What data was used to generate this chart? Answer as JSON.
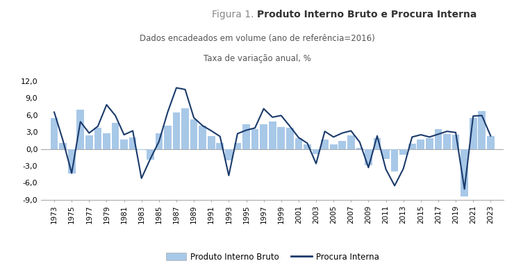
{
  "title_part1": "Figura 1. ",
  "title_part2": "Produto Interno Bruto e Procura Interna",
  "subtitle1": "Dados encadeados em volume (ano de referência=2016)",
  "subtitle2": "Taxa de variação anual, %",
  "years": [
    1973,
    1974,
    1975,
    1976,
    1977,
    1978,
    1979,
    1980,
    1981,
    1982,
    1983,
    1984,
    1985,
    1986,
    1987,
    1988,
    1989,
    1990,
    1991,
    1992,
    1993,
    1994,
    1995,
    1996,
    1997,
    1998,
    1999,
    2000,
    2001,
    2002,
    2003,
    2004,
    2005,
    2006,
    2007,
    2008,
    2009,
    2010,
    2011,
    2012,
    2013,
    2014,
    2015,
    2016,
    2017,
    2018,
    2019,
    2020,
    2021,
    2022,
    2023
  ],
  "pib": [
    5.5,
    1.1,
    -4.3,
    6.9,
    2.4,
    3.7,
    2.7,
    4.6,
    1.6,
    2.0,
    -0.2,
    -1.9,
    2.8,
    4.1,
    6.4,
    7.2,
    5.2,
    4.1,
    2.3,
    1.1,
    -2.0,
    1.0,
    4.3,
    3.5,
    4.4,
    4.8,
    3.9,
    3.8,
    1.9,
    0.8,
    -0.9,
    1.6,
    0.8,
    1.4,
    2.4,
    0.2,
    -2.9,
    1.9,
    -1.8,
    -4.0,
    -1.1,
    0.9,
    1.6,
    1.9,
    3.5,
    2.6,
    2.5,
    -8.4,
    5.5,
    6.7,
    2.3
  ],
  "procura": [
    6.5,
    1.5,
    -4.3,
    4.8,
    2.8,
    4.0,
    7.8,
    5.9,
    2.5,
    3.2,
    -5.2,
    -1.8,
    1.3,
    6.5,
    10.8,
    10.5,
    5.5,
    4.1,
    3.2,
    2.2,
    -4.7,
    2.7,
    3.3,
    3.7,
    7.1,
    5.6,
    5.9,
    4.0,
    2.0,
    1.0,
    -2.6,
    3.1,
    2.1,
    2.8,
    3.2,
    1.2,
    -3.3,
    2.3,
    -3.6,
    -6.5,
    -3.5,
    2.1,
    2.5,
    2.1,
    2.6,
    3.1,
    2.9,
    -7.1,
    5.8,
    5.9,
    2.3
  ],
  "bar_color": "#a8c8e8",
  "line_color": "#1a3a6b",
  "ylim": [
    -9.0,
    12.0
  ],
  "yticks": [
    -9.0,
    -6.0,
    -3.0,
    0.0,
    3.0,
    6.0,
    9.0,
    12.0
  ],
  "ytick_labels": [
    "-9,0",
    "-6,0",
    "-3,0",
    "0,0",
    "3,0",
    "6,0",
    "9,0",
    "12,0"
  ],
  "xtick_years": [
    1973,
    1975,
    1977,
    1979,
    1981,
    1983,
    1985,
    1987,
    1989,
    1991,
    1993,
    1995,
    1997,
    1999,
    2001,
    2003,
    2005,
    2007,
    2009,
    2011,
    2013,
    2015,
    2017,
    2019,
    2021,
    2023
  ],
  "legend_bar_label": "Produto Interno Bruto",
  "legend_line_label": "Procura Interna",
  "bg_color": "#ffffff",
  "ax_bg_color": "#ffffff",
  "title_color1": "#888888",
  "title_color2": "#333333",
  "subtitle_color": "#555555"
}
